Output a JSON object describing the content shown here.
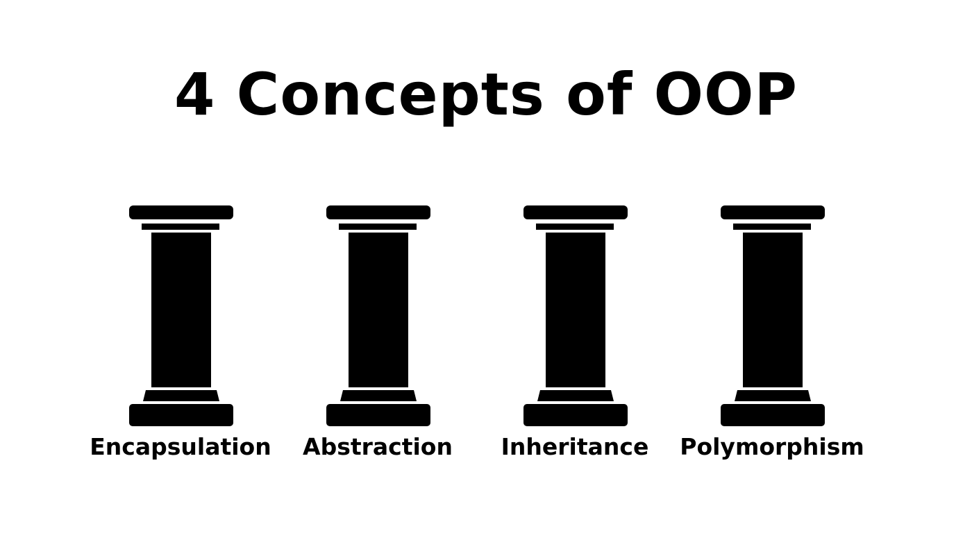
{
  "title": "4 Concepts of OOP",
  "pillars": [
    {
      "icon": "pillar-icon",
      "label": "Encapsulation"
    },
    {
      "icon": "pillar-icon",
      "label": "Abstraction"
    },
    {
      "icon": "pillar-icon",
      "label": "Inheritance"
    },
    {
      "icon": "pillar-icon",
      "label": "Polymorphism"
    }
  ],
  "colors": {
    "background": "#ffffff",
    "foreground": "#000000"
  }
}
